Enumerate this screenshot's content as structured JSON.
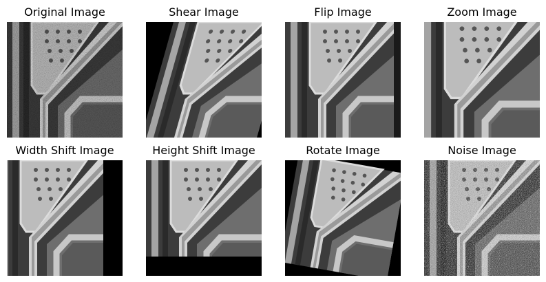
{
  "panels": [
    {
      "title": "Original Image"
    },
    {
      "title": "Shear Image"
    },
    {
      "title": "Flip Image"
    },
    {
      "title": "Zoom Image"
    },
    {
      "title": "Width Shift Image"
    },
    {
      "title": "Height Shift Image"
    },
    {
      "title": "Rotate Image"
    },
    {
      "title": "Noise Image"
    }
  ]
}
